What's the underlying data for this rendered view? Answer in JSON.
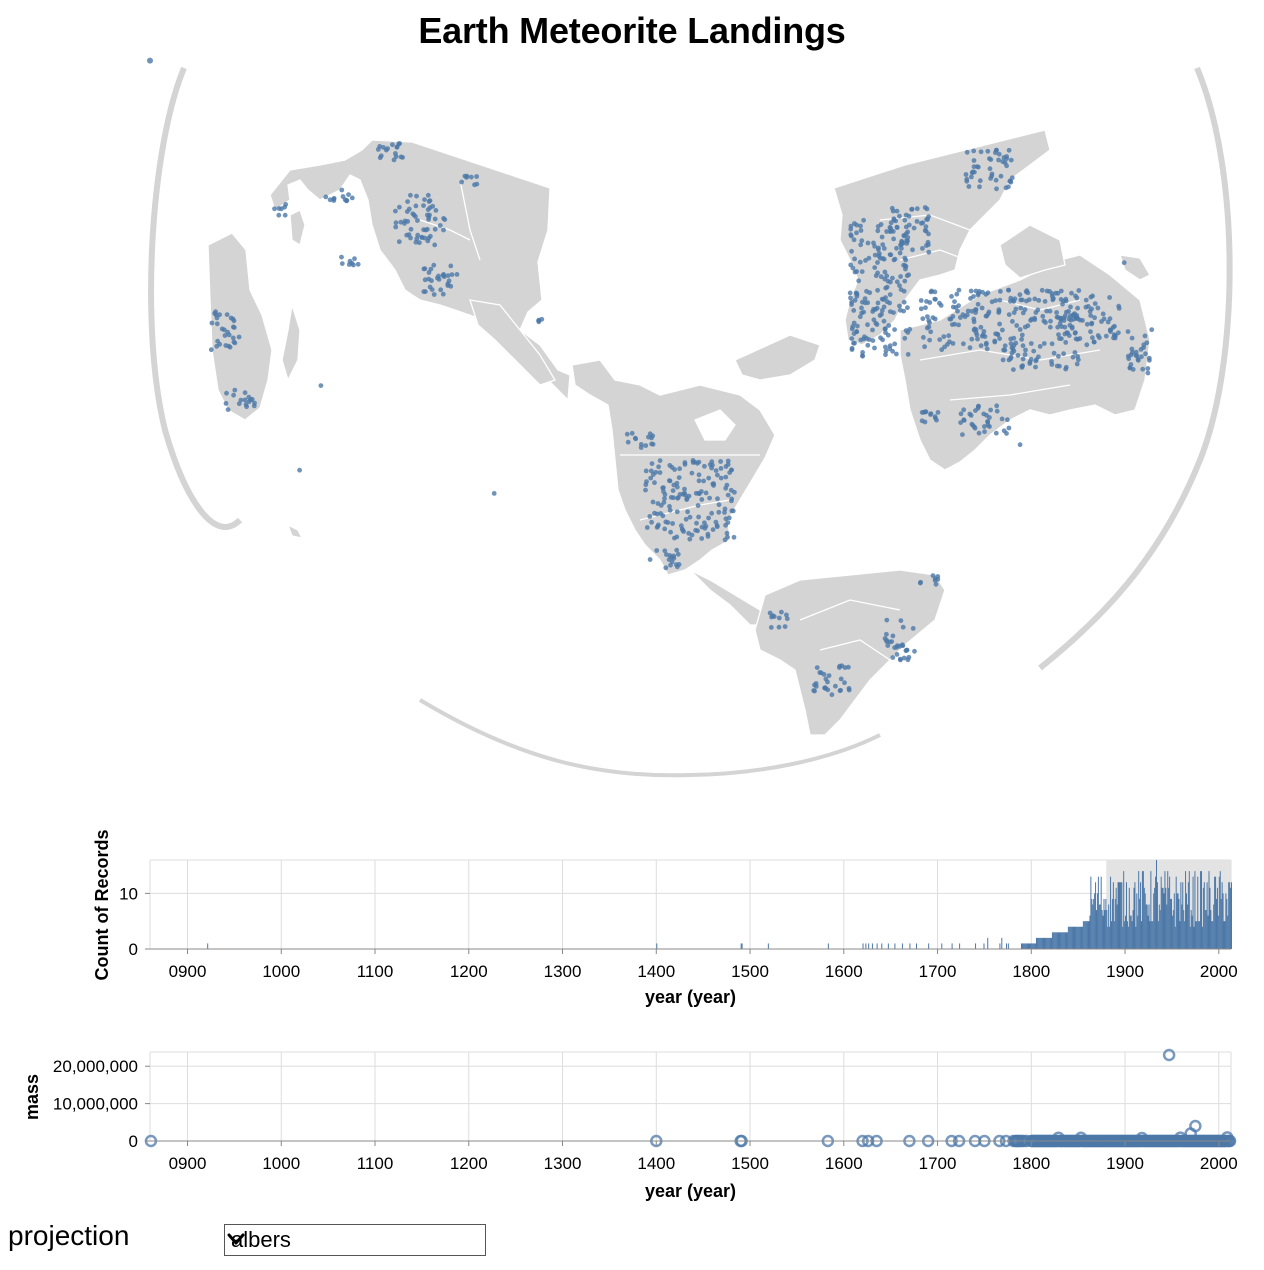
{
  "title": "Earth Meteorite Landings",
  "colors": {
    "land": "#d4d4d4",
    "land_border": "#ffffff",
    "point": "#4c78a8",
    "grid": "#dddddd",
    "brush": "#e3e3e3"
  },
  "map": {
    "projection": "albers",
    "point_count_note": ""
  },
  "histogram": {
    "ylabel": "Count of Records",
    "xlabel": "year (year)",
    "x_ticks": [
      "0900",
      "1000",
      "1100",
      "1200",
      "1300",
      "1400",
      "1500",
      "1600",
      "1700",
      "1800",
      "1900",
      "2000"
    ],
    "y_ticks": [
      "0",
      "10"
    ],
    "brush_range": [
      1880,
      2013
    ]
  },
  "mass_chart": {
    "ylabel": "mass",
    "xlabel": "year (year)",
    "x_ticks": [
      "0900",
      "1000",
      "1100",
      "1200",
      "1300",
      "1400",
      "1500",
      "1600",
      "1700",
      "1800",
      "1900",
      "2000"
    ],
    "y_ticks": [
      "0",
      "10,000,000",
      "20,000,000"
    ]
  },
  "controls": {
    "projection_label": "projection",
    "projection_value": "albers",
    "chevron_icon": "chevron-down-icon"
  },
  "chart_data": [
    {
      "type": "bar",
      "ylabel": "Count of Records",
      "xlabel": "year (year)",
      "xlim": [
        860,
        2013
      ],
      "ylim": [
        0,
        16
      ],
      "sparse_bars": [
        {
          "year": 921,
          "count": 1
        },
        {
          "year": 1400,
          "count": 1
        },
        {
          "year": 1490,
          "count": 1
        },
        {
          "year": 1491,
          "count": 1
        },
        {
          "year": 1519,
          "count": 1
        },
        {
          "year": 1583,
          "count": 1
        },
        {
          "year": 1620,
          "count": 1
        },
        {
          "year": 1623,
          "count": 1
        },
        {
          "year": 1626,
          "count": 1
        },
        {
          "year": 1630,
          "count": 1
        },
        {
          "year": 1635,
          "count": 1
        },
        {
          "year": 1640,
          "count": 1
        },
        {
          "year": 1647,
          "count": 1
        },
        {
          "year": 1654,
          "count": 1
        },
        {
          "year": 1662,
          "count": 1
        },
        {
          "year": 1670,
          "count": 1
        },
        {
          "year": 1677,
          "count": 1
        },
        {
          "year": 1690,
          "count": 1
        },
        {
          "year": 1704,
          "count": 1
        },
        {
          "year": 1715,
          "count": 1
        },
        {
          "year": 1723,
          "count": 1
        },
        {
          "year": 1740,
          "count": 1
        },
        {
          "year": 1749,
          "count": 1
        },
        {
          "year": 1753,
          "count": 2
        },
        {
          "year": 1766,
          "count": 1
        },
        {
          "year": 1768,
          "count": 2
        },
        {
          "year": 1773,
          "count": 1
        },
        {
          "year": 1775,
          "count": 1
        }
      ],
      "dense_region": {
        "from": 1780,
        "to": 2013,
        "typical_max": 10,
        "peak": 16,
        "peak_year": 1933
      }
    },
    {
      "type": "scatter",
      "ylabel": "mass",
      "xlabel": "year (year)",
      "xlim": [
        860,
        2013
      ],
      "ylim": [
        0,
        23000000
      ],
      "notable_points": [
        {
          "year": 861,
          "mass": 0
        },
        {
          "year": 1400,
          "mass": 0
        },
        {
          "year": 1490,
          "mass": 0
        },
        {
          "year": 1491,
          "mass": 0
        },
        {
          "year": 1583,
          "mass": 0
        },
        {
          "year": 1620,
          "mass": 0
        },
        {
          "year": 1626,
          "mass": 0
        },
        {
          "year": 1635,
          "mass": 0
        },
        {
          "year": 1670,
          "mass": 0
        },
        {
          "year": 1690,
          "mass": 0
        },
        {
          "year": 1715,
          "mass": 0
        },
        {
          "year": 1723,
          "mass": 0
        },
        {
          "year": 1740,
          "mass": 0
        },
        {
          "year": 1750,
          "mass": 0
        },
        {
          "year": 1766,
          "mass": 0
        },
        {
          "year": 1773,
          "mass": 0
        },
        {
          "year": 1947,
          "mass": 23000000
        },
        {
          "year": 1975,
          "mass": 4000000
        },
        {
          "year": 1970,
          "mass": 2000000
        }
      ]
    }
  ]
}
